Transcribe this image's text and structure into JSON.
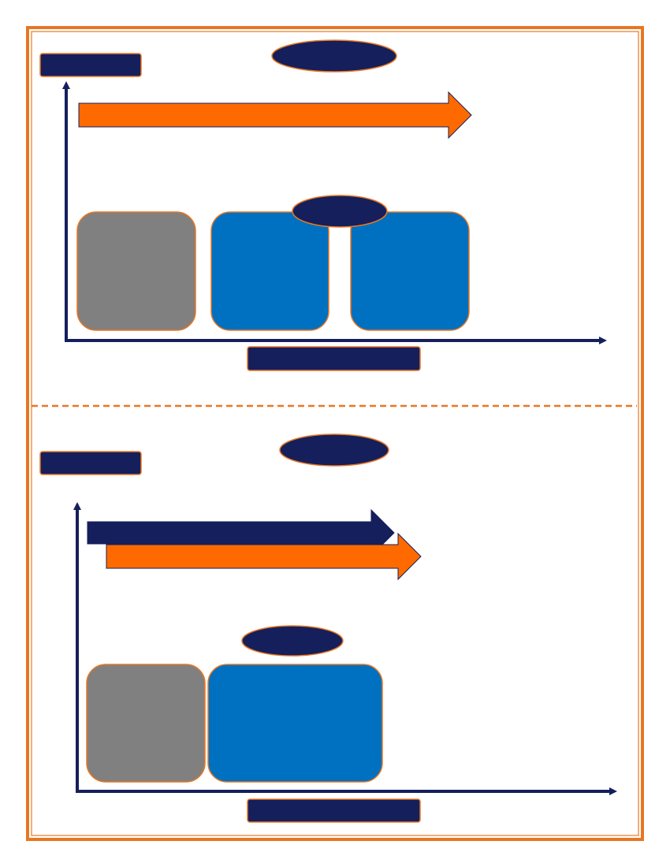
{
  "colors": {
    "frame_border": "#E87722",
    "navy": "#141F5C",
    "orange_arrow": "#FF6A00",
    "gray_block": "#808080",
    "blue_block": "#0070C0",
    "shape_outline": "#E87722"
  },
  "panels": [
    {
      "id": "top",
      "label_boxes": [
        "y-axis-label-box",
        "x-axis-label-box"
      ],
      "ovals": [
        "title-oval",
        "gap-oval"
      ],
      "arrows": [
        "orange-timeline-arrow"
      ],
      "blocks": [
        {
          "kind": "gray",
          "name": "gray-block"
        },
        {
          "kind": "blue",
          "name": "blue-block-1"
        },
        {
          "kind": "blue",
          "name": "blue-block-2"
        }
      ]
    },
    {
      "id": "bottom",
      "label_boxes": [
        "y-axis-label-box",
        "x-axis-label-box"
      ],
      "ovals": [
        "title-oval",
        "block-oval"
      ],
      "arrows": [
        "navy-timeline-arrow",
        "orange-timeline-arrow"
      ],
      "blocks": [
        {
          "kind": "gray",
          "name": "gray-block"
        },
        {
          "kind": "blue",
          "name": "blue-block-wide"
        }
      ]
    }
  ]
}
